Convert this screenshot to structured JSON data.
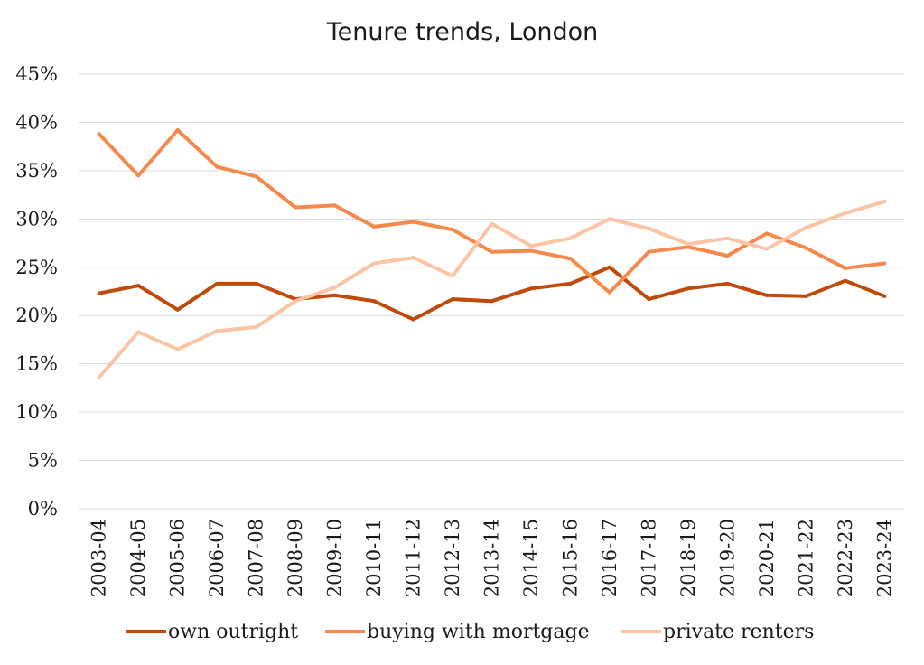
{
  "chart_data": {
    "type": "line",
    "title": "Tenure trends, London",
    "xlabel": "",
    "ylabel": "",
    "ylim": [
      0,
      45
    ],
    "y_ticks": [
      0,
      5,
      10,
      15,
      20,
      25,
      30,
      35,
      40,
      45
    ],
    "y_tick_format": "percent",
    "grid": "horizontal",
    "legend_position": "bottom",
    "categories": [
      "2003-04",
      "2004-05",
      "2005-06",
      "2006-07",
      "2007-08",
      "2008-09",
      "2009-10",
      "2010-11",
      "2011-12",
      "2012-13",
      "2013-14",
      "2014-15",
      "2015-16",
      "2016-17",
      "2017-18",
      "2018-19",
      "2019-20",
      "2020-21",
      "2021-22",
      "2022-23",
      "2023-24"
    ],
    "series": [
      {
        "name": "own outright",
        "color": "#c04a0a",
        "values": [
          22.3,
          23.1,
          20.6,
          23.3,
          23.3,
          21.7,
          22.1,
          21.5,
          19.6,
          21.7,
          21.5,
          22.8,
          23.3,
          25.0,
          21.7,
          22.8,
          23.3,
          22.1,
          22.0,
          23.6,
          22.0
        ]
      },
      {
        "name": "buying with mortgage",
        "color": "#f5894c",
        "values": [
          38.8,
          34.5,
          39.2,
          35.4,
          34.4,
          31.2,
          31.4,
          29.2,
          29.7,
          28.9,
          26.6,
          26.7,
          25.9,
          22.4,
          26.6,
          27.1,
          26.2,
          28.5,
          27.0,
          24.9,
          25.4
        ]
      },
      {
        "name": "private renters",
        "color": "#fbc4a4",
        "values": [
          13.6,
          18.3,
          16.5,
          18.4,
          18.8,
          21.5,
          22.9,
          25.4,
          26.0,
          24.1,
          29.5,
          27.2,
          28.0,
          30.0,
          29.0,
          27.4,
          28.0,
          26.9,
          29.1,
          30.6,
          31.8
        ]
      }
    ]
  }
}
